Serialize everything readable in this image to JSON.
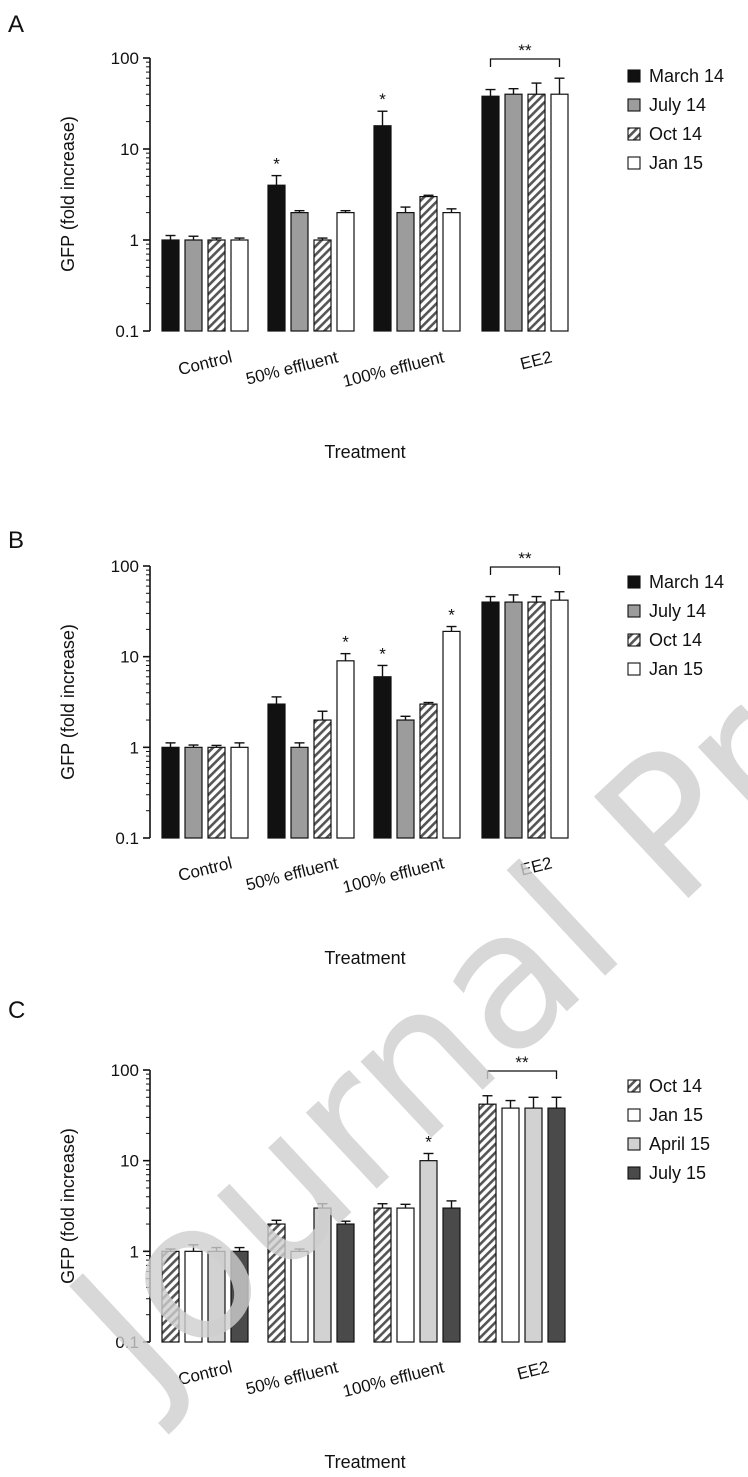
{
  "watermark": "Journal Pre-proof",
  "chart_data": [
    {
      "type": "bar",
      "panel": "A",
      "xlabel": "Treatment",
      "ylabel": "GFP (fold increase)",
      "ylim": [
        0.1,
        100
      ],
      "yscale": "log",
      "yticks": [
        "0.1",
        "1",
        "10",
        "100"
      ],
      "legend_position": "right",
      "categories": [
        "Control",
        "50% effluent",
        "100% effluent",
        "EE2"
      ],
      "series": [
        {
          "name": "March 14",
          "fill": "black",
          "values": [
            1.0,
            4.0,
            18.0,
            38.0
          ],
          "errors": [
            0.12,
            1.1,
            8.0,
            7.0
          ]
        },
        {
          "name": "July 14",
          "fill": "gray",
          "values": [
            1.0,
            2.0,
            2.0,
            40.0
          ],
          "errors": [
            0.1,
            0.1,
            0.3,
            6.0
          ]
        },
        {
          "name": "Oct 14",
          "fill": "hatch",
          "values": [
            1.0,
            1.0,
            3.0,
            40.0
          ],
          "errors": [
            0.05,
            0.05,
            0.1,
            13.0
          ]
        },
        {
          "name": "Jan 15",
          "fill": "white",
          "values": [
            1.0,
            2.0,
            2.0,
            40.0
          ],
          "errors": [
            0.05,
            0.1,
            0.2,
            20.0
          ]
        }
      ],
      "annotations": [
        {
          "text": "*",
          "category": 1,
          "series": 0
        },
        {
          "text": "*",
          "category": 2,
          "series": 0
        },
        {
          "text": "**",
          "bracket_category": 3
        }
      ]
    },
    {
      "type": "bar",
      "panel": "B",
      "xlabel": "Treatment",
      "ylabel": "GFP (fold increase)",
      "ylim": [
        0.1,
        100
      ],
      "yscale": "log",
      "yticks": [
        "0.1",
        "1",
        "10",
        "100"
      ],
      "legend_position": "right",
      "categories": [
        "Control",
        "50% effluent",
        "100% effluent",
        "EE2"
      ],
      "series": [
        {
          "name": "March 14",
          "fill": "black",
          "values": [
            1.0,
            3.0,
            6.0,
            40.0
          ],
          "errors": [
            0.12,
            0.6,
            2.0,
            6.0
          ]
        },
        {
          "name": "July 14",
          "fill": "gray",
          "values": [
            1.0,
            1.0,
            2.0,
            40.0
          ],
          "errors": [
            0.06,
            0.12,
            0.2,
            8.0
          ]
        },
        {
          "name": "Oct 14",
          "fill": "hatch",
          "values": [
            1.0,
            2.0,
            3.0,
            40.0
          ],
          "errors": [
            0.05,
            0.5,
            0.12,
            6.0
          ]
        },
        {
          "name": "Jan 15",
          "fill": "white",
          "values": [
            1.0,
            9.0,
            19.0,
            42.0
          ],
          "errors": [
            0.12,
            1.8,
            2.5,
            10.0
          ]
        }
      ],
      "annotations": [
        {
          "text": "*",
          "category": 1,
          "series": 3
        },
        {
          "text": "*",
          "category": 2,
          "series": 0
        },
        {
          "text": "*",
          "category": 2,
          "series": 3
        },
        {
          "text": "**",
          "bracket_category": 3
        }
      ]
    },
    {
      "type": "bar",
      "panel": "C",
      "xlabel": "Treatment",
      "ylabel": "GFP (fold increase)",
      "ylim": [
        0.1,
        100
      ],
      "yscale": "log",
      "yticks": [
        "0.1",
        "1",
        "10",
        "100"
      ],
      "legend_position": "right",
      "categories": [
        "Control",
        "50% effluent",
        "100% effluent",
        "EE2"
      ],
      "series": [
        {
          "name": "Oct 14",
          "fill": "hatch",
          "values": [
            1.0,
            2.0,
            3.0,
            42.0
          ],
          "errors": [
            0.06,
            0.2,
            0.35,
            10.0
          ]
        },
        {
          "name": "Jan 15",
          "fill": "white",
          "values": [
            1.0,
            1.0,
            3.0,
            38.0
          ],
          "errors": [
            0.18,
            0.06,
            0.3,
            8.0
          ]
        },
        {
          "name": "April 15",
          "fill": "lightgray",
          "values": [
            1.0,
            3.0,
            10.0,
            38.0
          ],
          "errors": [
            0.1,
            0.35,
            2.0,
            12.0
          ]
        },
        {
          "name": "July 15",
          "fill": "darkgray",
          "values": [
            1.0,
            2.0,
            3.0,
            38.0
          ],
          "errors": [
            0.1,
            0.15,
            0.6,
            12.0
          ]
        }
      ],
      "annotations": [
        {
          "text": "*",
          "category": 2,
          "series": 2
        },
        {
          "text": "**",
          "bracket_category": 3
        }
      ]
    }
  ]
}
